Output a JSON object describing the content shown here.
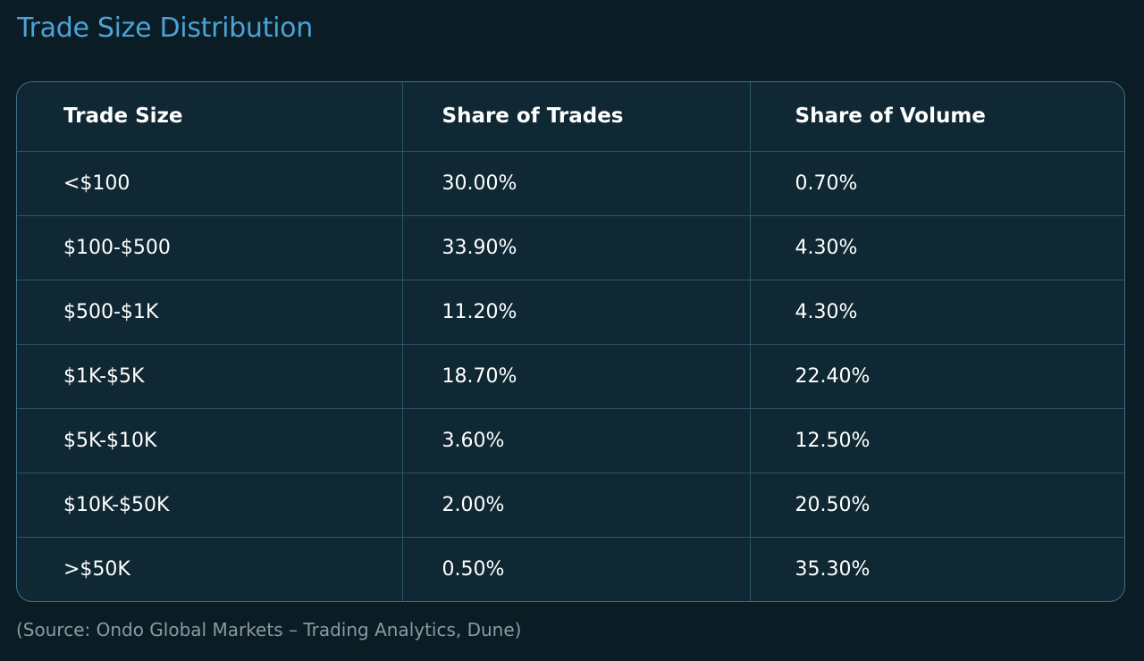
{
  "title": "Trade Size Distribution",
  "source": "(Source: Ondo Global Markets – Trading Analytics, Dune)",
  "colors": {
    "background": "#0b1c24",
    "title": "#4aa3d6",
    "table_background": "#0f2833",
    "border": "#3f6f85",
    "text": "#ffffff",
    "source": "#8a9aa2"
  },
  "chart_data": {
    "type": "table",
    "title": "Trade Size Distribution",
    "columns": [
      "Trade Size",
      "Share of Trades",
      "Share of Volume"
    ],
    "rows": [
      [
        "<$100",
        "30.00%",
        "0.70%"
      ],
      [
        "$100-$500",
        "33.90%",
        "4.30%"
      ],
      [
        "$500-$1K",
        "11.20%",
        "4.30%"
      ],
      [
        "$1K-$5K",
        "18.70%",
        "22.40%"
      ],
      [
        "$5K-$10K",
        "3.60%",
        "12.50%"
      ],
      [
        "$10K-$50K",
        "2.00%",
        "20.50%"
      ],
      [
        ">$50K",
        "0.50%",
        "35.30%"
      ]
    ]
  }
}
